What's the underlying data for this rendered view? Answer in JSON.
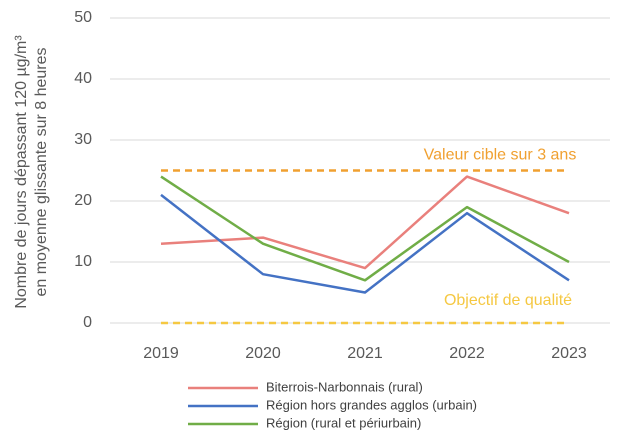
{
  "chart_data": {
    "type": "line",
    "y_label": [
      "Nombre de jours dépassant 120 µg/m³",
      "en moyenne glissante sur 8 heures"
    ],
    "categories": [
      "2019",
      "2020",
      "2021",
      "2022",
      "2023"
    ],
    "series": [
      {
        "name": "Biterrois-Narbonnais (rural)",
        "color": "#e9807c",
        "values": [
          13,
          14,
          9,
          24,
          18
        ]
      },
      {
        "name": "Région hors grandes agglos (urbain)",
        "color": "#4472c4",
        "values": [
          21,
          8,
          5,
          18,
          7
        ]
      },
      {
        "name": "Région (rural et périurbain)",
        "color": "#70ad47",
        "values": [
          24,
          13,
          7,
          19,
          10
        ]
      }
    ],
    "reference_lines": [
      {
        "value": 25,
        "label": "Valeur cible sur 3 ans",
        "color": "#f0a030"
      },
      {
        "value": 0,
        "label": "Objectif de qualité",
        "color": "#f5c842"
      }
    ],
    "ylim": [
      0,
      50
    ],
    "yticks": [
      0,
      10,
      20,
      30,
      40,
      50
    ],
    "grid": true
  }
}
